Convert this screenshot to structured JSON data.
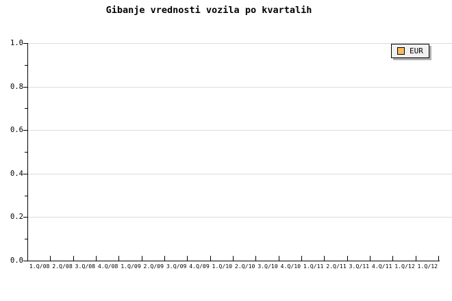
{
  "chart_data": {
    "type": "line",
    "title": "Gibanje vrednosti vozila po kvartalih",
    "categories": [
      "1.Q/08",
      "2.Q/08",
      "3.Q/08",
      "4.Q/08",
      "1.Q/09",
      "2.Q/09",
      "3.Q/09",
      "4.Q/09",
      "1.Q/10",
      "2.Q/10",
      "3.Q/10",
      "4.Q/10",
      "1.Q/11",
      "2.Q/11",
      "3.Q/11",
      "4.Q/11",
      "1.Q/12",
      "1.Q/12"
    ],
    "series": [
      {
        "name": "EUR",
        "color": "#F8BC5C",
        "values": []
      }
    ],
    "xlabel": "",
    "ylabel": "",
    "ylim": [
      0.0,
      1.0
    ],
    "y_major_ticks": [
      0.0,
      0.2,
      0.4,
      0.6,
      0.8,
      1.0
    ],
    "y_tick_labels": [
      "0.0",
      "0.2",
      "0.4",
      "0.6",
      "0.8",
      "1.0"
    ],
    "y_minor_ticks": [
      0.1,
      0.3,
      0.5,
      0.7,
      0.9
    ],
    "grid": "horizontal-major-only",
    "grid_color": "#DCDCDC",
    "axis_color": "#000000",
    "plot_is_empty": true,
    "legend": {
      "position": "top-right-inside",
      "entries": [
        "EUR"
      ]
    }
  }
}
